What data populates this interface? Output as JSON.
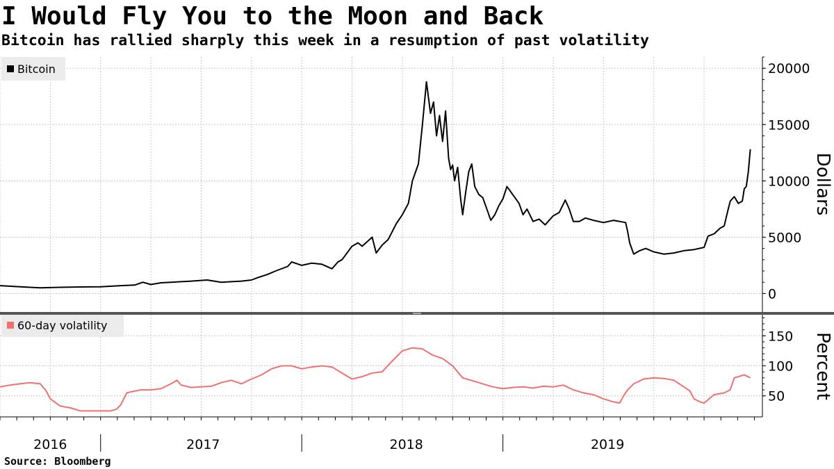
{
  "title": "I Would Fly You to the Moon and Back",
  "subtitle": "Bitcoin has rallied sharply this week in a resumption of past volatility",
  "source": "Source: Bloomberg",
  "colors": {
    "price": "#000000",
    "volatility": "#f07070",
    "grid": "#c8c8c8",
    "divider": "#555555"
  },
  "chart_data": [
    {
      "type": "line",
      "name": "price",
      "legend": "Bitcoin",
      "ylabel": "Dollars",
      "ylim": [
        -1700,
        21000
      ],
      "yticks": [
        0,
        5000,
        10000,
        15000,
        20000
      ],
      "xlim": [
        2015.75,
        2019.54
      ],
      "series": [
        {
          "name": "Bitcoin",
          "x": [
            2015.75,
            2015.85,
            2015.95,
            2016.05,
            2016.15,
            2016.25,
            2016.35,
            2016.42,
            2016.46,
            2016.5,
            2016.55,
            2016.6,
            2016.7,
            2016.78,
            2016.85,
            2016.9,
            2016.95,
            2017.0,
            2017.03,
            2017.08,
            2017.12,
            2017.18,
            2017.2,
            2017.25,
            2017.3,
            2017.35,
            2017.4,
            2017.43,
            2017.45,
            2017.5,
            2017.53,
            2017.55,
            2017.6,
            2017.62,
            2017.65,
            2017.68,
            2017.7,
            2017.72,
            2017.75,
            2017.78,
            2017.8,
            2017.83,
            2017.85,
            2017.87,
            2017.89,
            2017.905,
            2017.92,
            2017.935,
            2017.95,
            2017.965,
            2017.98,
            2017.99,
            2018.0,
            2018.01,
            2018.025,
            2018.04,
            2018.05,
            2018.065,
            2018.08,
            2018.095,
            2018.11,
            2018.13,
            2018.15,
            2018.17,
            2018.19,
            2018.21,
            2018.23,
            2018.25,
            2018.27,
            2018.29,
            2018.31,
            2018.33,
            2018.35,
            2018.37,
            2018.4,
            2018.43,
            2018.46,
            2018.48,
            2018.5,
            2018.53,
            2018.56,
            2018.58,
            2018.6,
            2018.63,
            2018.66,
            2018.7,
            2018.75,
            2018.8,
            2018.83,
            2018.86,
            2018.87,
            2018.88,
            2018.9,
            2018.93,
            2018.96,
            2019.0,
            2019.05,
            2019.1,
            2019.15,
            2019.2,
            2019.25,
            2019.27,
            2019.3,
            2019.33,
            2019.35,
            2019.37,
            2019.38,
            2019.4,
            2019.42,
            2019.44,
            2019.45,
            2019.46,
            2019.47,
            2019.48
          ],
          "values": [
            700,
            600,
            500,
            550,
            580,
            600,
            700,
            750,
            1000,
            800,
            950,
            1000,
            1100,
            1200,
            1000,
            1050,
            1100,
            1200,
            1400,
            1700,
            2000,
            2400,
            2800,
            2500,
            2700,
            2600,
            2200,
            2800,
            3000,
            4200,
            4500,
            4200,
            5000,
            3600,
            4300,
            4800,
            5500,
            6200,
            7000,
            8000,
            10000,
            11500,
            15000,
            18800,
            16000,
            17000,
            14000,
            15800,
            13500,
            16200,
            12000,
            11000,
            11400,
            10000,
            11200,
            8400,
            7000,
            9000,
            10800,
            11500,
            9500,
            8800,
            8500,
            7500,
            6500,
            7000,
            7800,
            8400,
            9500,
            9000,
            8500,
            8000,
            7000,
            7500,
            6400,
            6600,
            6100,
            6500,
            6900,
            7200,
            8300,
            7500,
            6400,
            6400,
            6700,
            6500,
            6300,
            6500,
            6400,
            6300,
            5500,
            4500,
            3500,
            3800,
            4000,
            3700,
            3500,
            3600,
            3800,
            3900,
            4100,
            5100,
            5300,
            5800,
            6000,
            7500,
            8200,
            8600,
            8000,
            8200,
            9300,
            9500,
            10800,
            12800
          ]
        }
      ]
    },
    {
      "type": "line",
      "name": "volatility",
      "legend": "60-day volatility",
      "ylabel": "Percent",
      "ylim": [
        15,
        185
      ],
      "yticks": [
        50,
        100,
        150
      ],
      "xlim": [
        2015.75,
        2019.54
      ],
      "series": [
        {
          "name": "60-day volatility",
          "x": [
            2015.75,
            2015.8,
            2015.85,
            2015.9,
            2015.95,
            2015.98,
            2016.0,
            2016.05,
            2016.1,
            2016.15,
            2016.2,
            2016.25,
            2016.3,
            2016.33,
            2016.35,
            2016.38,
            2016.42,
            2016.45,
            2016.5,
            2016.55,
            2016.6,
            2016.63,
            2016.65,
            2016.7,
            2016.75,
            2016.8,
            2016.85,
            2016.9,
            2016.95,
            2017.0,
            2017.05,
            2017.1,
            2017.15,
            2017.2,
            2017.25,
            2017.3,
            2017.35,
            2017.4,
            2017.45,
            2017.5,
            2017.55,
            2017.6,
            2017.65,
            2017.7,
            2017.75,
            2017.8,
            2017.85,
            2017.9,
            2017.95,
            2018.0,
            2018.05,
            2018.1,
            2018.15,
            2018.2,
            2018.25,
            2018.3,
            2018.35,
            2018.4,
            2018.45,
            2018.5,
            2018.55,
            2018.6,
            2018.65,
            2018.7,
            2018.75,
            2018.8,
            2018.83,
            2018.85,
            2018.87,
            2018.9,
            2018.95,
            2019.0,
            2019.05,
            2019.1,
            2019.15,
            2019.18,
            2019.2,
            2019.23,
            2019.25,
            2019.3,
            2019.35,
            2019.38,
            2019.4,
            2019.45,
            2019.48
          ],
          "values": [
            65,
            68,
            70,
            72,
            70,
            58,
            45,
            33,
            30,
            25,
            25,
            25,
            25,
            28,
            35,
            55,
            58,
            60,
            60,
            62,
            70,
            76,
            68,
            64,
            65,
            66,
            72,
            76,
            70,
            78,
            85,
            95,
            100,
            100,
            95,
            98,
            100,
            98,
            88,
            78,
            82,
            88,
            90,
            108,
            125,
            130,
            128,
            118,
            112,
            100,
            80,
            75,
            70,
            65,
            62,
            64,
            65,
            63,
            66,
            65,
            68,
            60,
            55,
            52,
            45,
            40,
            38,
            50,
            60,
            70,
            78,
            80,
            79,
            76,
            65,
            58,
            45,
            40,
            38,
            52,
            55,
            60,
            80,
            85,
            80
          ]
        }
      ]
    }
  ],
  "x_axis": {
    "labels": [
      {
        "text": "2016",
        "x": 2016.0
      },
      {
        "text": "2017",
        "x": 2016.5
      },
      {
        "text": "2018",
        "x": 2017.5
      },
      {
        "text": "2019",
        "x": 2018.5
      }
    ]
  }
}
